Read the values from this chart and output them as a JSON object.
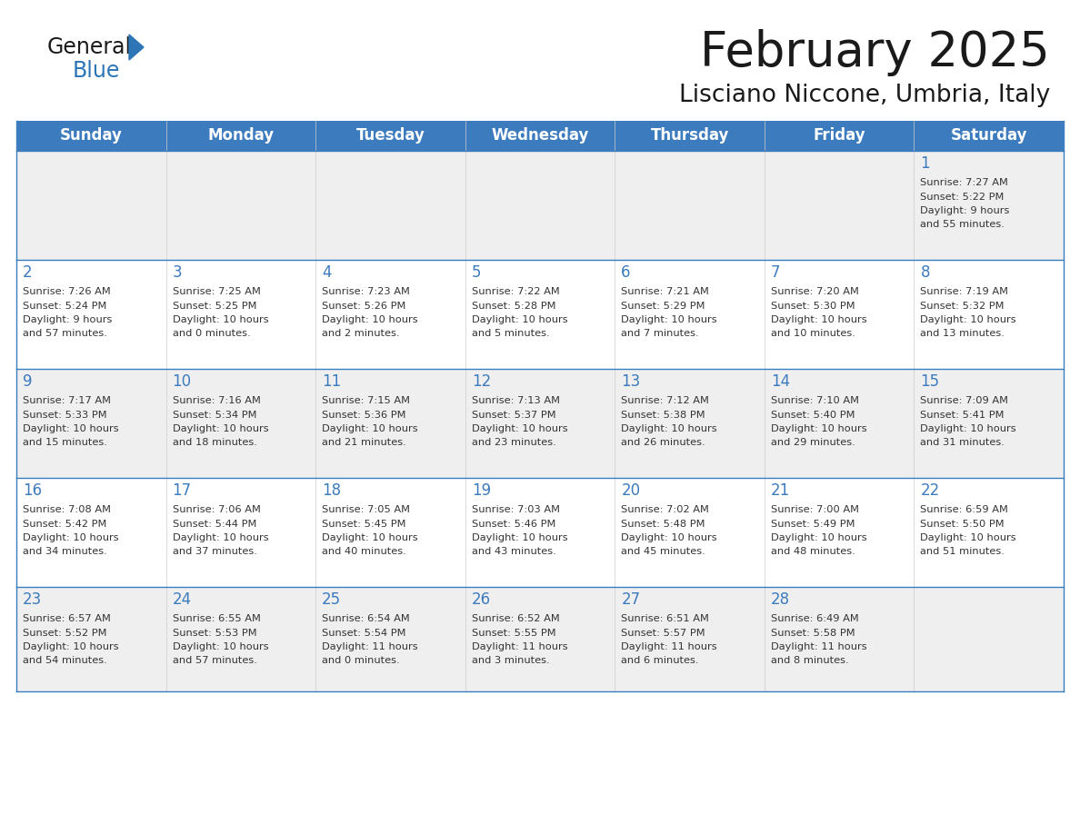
{
  "title": "February 2025",
  "subtitle": "Lisciano Niccone, Umbria, Italy",
  "header_color": "#3C7BBE",
  "header_text_color": "#FFFFFF",
  "row0_bg": "#EFEFEF",
  "row1_bg": "#FFFFFF",
  "row2_bg": "#EFEFEF",
  "row3_bg": "#FFFFFF",
  "row4_bg": "#EFEFEF",
  "days_of_week": [
    "Sunday",
    "Monday",
    "Tuesday",
    "Wednesday",
    "Thursday",
    "Friday",
    "Saturday"
  ],
  "title_color": "#1a1a1a",
  "subtitle_color": "#1a1a1a",
  "number_color": "#3C7BBE",
  "text_color": "#333333",
  "line_color": "#3C7BBE",
  "logo_general_color": "#1a1a1a",
  "logo_blue_color": "#2E75B6",
  "logo_triangle_color": "#2E75B6",
  "calendar_data": [
    [
      null,
      null,
      null,
      null,
      null,
      null,
      {
        "day": 1,
        "sunrise": "7:27 AM",
        "sunset": "5:22 PM",
        "daylight_l1": "9 hours",
        "daylight_l2": "and 55 minutes."
      }
    ],
    [
      {
        "day": 2,
        "sunrise": "7:26 AM",
        "sunset": "5:24 PM",
        "daylight_l1": "9 hours",
        "daylight_l2": "and 57 minutes."
      },
      {
        "day": 3,
        "sunrise": "7:25 AM",
        "sunset": "5:25 PM",
        "daylight_l1": "10 hours",
        "daylight_l2": "and 0 minutes."
      },
      {
        "day": 4,
        "sunrise": "7:23 AM",
        "sunset": "5:26 PM",
        "daylight_l1": "10 hours",
        "daylight_l2": "and 2 minutes."
      },
      {
        "day": 5,
        "sunrise": "7:22 AM",
        "sunset": "5:28 PM",
        "daylight_l1": "10 hours",
        "daylight_l2": "and 5 minutes."
      },
      {
        "day": 6,
        "sunrise": "7:21 AM",
        "sunset": "5:29 PM",
        "daylight_l1": "10 hours",
        "daylight_l2": "and 7 minutes."
      },
      {
        "day": 7,
        "sunrise": "7:20 AM",
        "sunset": "5:30 PM",
        "daylight_l1": "10 hours",
        "daylight_l2": "and 10 minutes."
      },
      {
        "day": 8,
        "sunrise": "7:19 AM",
        "sunset": "5:32 PM",
        "daylight_l1": "10 hours",
        "daylight_l2": "and 13 minutes."
      }
    ],
    [
      {
        "day": 9,
        "sunrise": "7:17 AM",
        "sunset": "5:33 PM",
        "daylight_l1": "10 hours",
        "daylight_l2": "and 15 minutes."
      },
      {
        "day": 10,
        "sunrise": "7:16 AM",
        "sunset": "5:34 PM",
        "daylight_l1": "10 hours",
        "daylight_l2": "and 18 minutes."
      },
      {
        "day": 11,
        "sunrise": "7:15 AM",
        "sunset": "5:36 PM",
        "daylight_l1": "10 hours",
        "daylight_l2": "and 21 minutes."
      },
      {
        "day": 12,
        "sunrise": "7:13 AM",
        "sunset": "5:37 PM",
        "daylight_l1": "10 hours",
        "daylight_l2": "and 23 minutes."
      },
      {
        "day": 13,
        "sunrise": "7:12 AM",
        "sunset": "5:38 PM",
        "daylight_l1": "10 hours",
        "daylight_l2": "and 26 minutes."
      },
      {
        "day": 14,
        "sunrise": "7:10 AM",
        "sunset": "5:40 PM",
        "daylight_l1": "10 hours",
        "daylight_l2": "and 29 minutes."
      },
      {
        "day": 15,
        "sunrise": "7:09 AM",
        "sunset": "5:41 PM",
        "daylight_l1": "10 hours",
        "daylight_l2": "and 31 minutes."
      }
    ],
    [
      {
        "day": 16,
        "sunrise": "7:08 AM",
        "sunset": "5:42 PM",
        "daylight_l1": "10 hours",
        "daylight_l2": "and 34 minutes."
      },
      {
        "day": 17,
        "sunrise": "7:06 AM",
        "sunset": "5:44 PM",
        "daylight_l1": "10 hours",
        "daylight_l2": "and 37 minutes."
      },
      {
        "day": 18,
        "sunrise": "7:05 AM",
        "sunset": "5:45 PM",
        "daylight_l1": "10 hours",
        "daylight_l2": "and 40 minutes."
      },
      {
        "day": 19,
        "sunrise": "7:03 AM",
        "sunset": "5:46 PM",
        "daylight_l1": "10 hours",
        "daylight_l2": "and 43 minutes."
      },
      {
        "day": 20,
        "sunrise": "7:02 AM",
        "sunset": "5:48 PM",
        "daylight_l1": "10 hours",
        "daylight_l2": "and 45 minutes."
      },
      {
        "day": 21,
        "sunrise": "7:00 AM",
        "sunset": "5:49 PM",
        "daylight_l1": "10 hours",
        "daylight_l2": "and 48 minutes."
      },
      {
        "day": 22,
        "sunrise": "6:59 AM",
        "sunset": "5:50 PM",
        "daylight_l1": "10 hours",
        "daylight_l2": "and 51 minutes."
      }
    ],
    [
      {
        "day": 23,
        "sunrise": "6:57 AM",
        "sunset": "5:52 PM",
        "daylight_l1": "10 hours",
        "daylight_l2": "and 54 minutes."
      },
      {
        "day": 24,
        "sunrise": "6:55 AM",
        "sunset": "5:53 PM",
        "daylight_l1": "10 hours",
        "daylight_l2": "and 57 minutes."
      },
      {
        "day": 25,
        "sunrise": "6:54 AM",
        "sunset": "5:54 PM",
        "daylight_l1": "11 hours",
        "daylight_l2": "and 0 minutes."
      },
      {
        "day": 26,
        "sunrise": "6:52 AM",
        "sunset": "5:55 PM",
        "daylight_l1": "11 hours",
        "daylight_l2": "and 3 minutes."
      },
      {
        "day": 27,
        "sunrise": "6:51 AM",
        "sunset": "5:57 PM",
        "daylight_l1": "11 hours",
        "daylight_l2": "and 6 minutes."
      },
      {
        "day": 28,
        "sunrise": "6:49 AM",
        "sunset": "5:58 PM",
        "daylight_l1": "11 hours",
        "daylight_l2": "and 8 minutes."
      },
      null
    ]
  ]
}
